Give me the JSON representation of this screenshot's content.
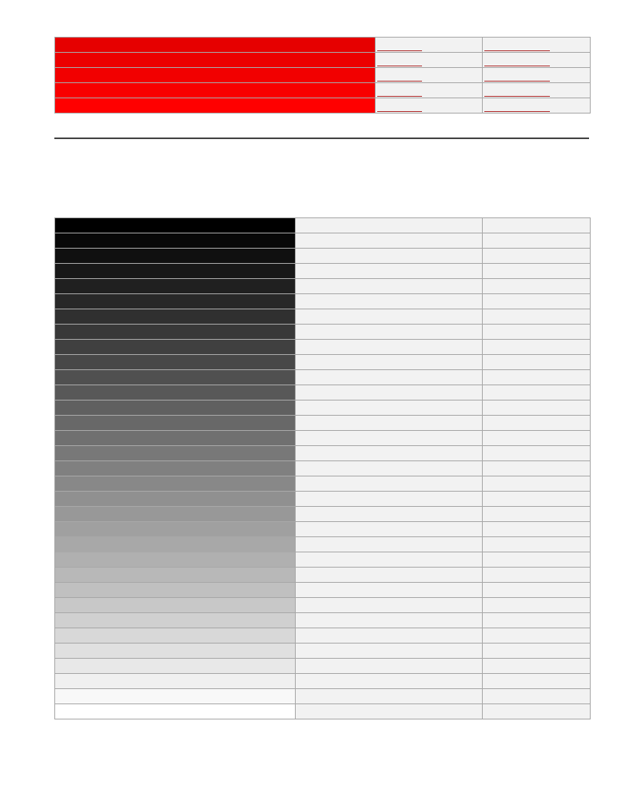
{
  "red_table": {
    "rows": [
      {
        "color": "#e60000",
        "hex_text": "",
        "rgb_text": ""
      },
      {
        "color": "#ec0000",
        "hex_text": "",
        "rgb_text": ""
      },
      {
        "color": "#f20000",
        "hex_text": "",
        "rgb_text": ""
      },
      {
        "color": "#f80000",
        "hex_text": "",
        "rgb_text": ""
      },
      {
        "color": "#ff0000",
        "hex_text": "",
        "rgb_text": ""
      }
    ]
  },
  "gray_table": {
    "rows": [
      {
        "color": "#000000",
        "hex_text": "",
        "rgb_text": ""
      },
      {
        "color": "#080808",
        "hex_text": "",
        "rgb_text": ""
      },
      {
        "color": "#101010",
        "hex_text": "",
        "rgb_text": ""
      },
      {
        "color": "#181818",
        "hex_text": "",
        "rgb_text": ""
      },
      {
        "color": "#202020",
        "hex_text": "",
        "rgb_text": ""
      },
      {
        "color": "#282828",
        "hex_text": "",
        "rgb_text": ""
      },
      {
        "color": "#303030",
        "hex_text": "",
        "rgb_text": ""
      },
      {
        "color": "#383838",
        "hex_text": "",
        "rgb_text": ""
      },
      {
        "color": "#404040",
        "hex_text": "",
        "rgb_text": ""
      },
      {
        "color": "#484848",
        "hex_text": "",
        "rgb_text": ""
      },
      {
        "color": "#505050",
        "hex_text": "",
        "rgb_text": ""
      },
      {
        "color": "#585858",
        "hex_text": "",
        "rgb_text": ""
      },
      {
        "color": "#606060",
        "hex_text": "",
        "rgb_text": ""
      },
      {
        "color": "#686868",
        "hex_text": "",
        "rgb_text": ""
      },
      {
        "color": "#707070",
        "hex_text": "",
        "rgb_text": ""
      },
      {
        "color": "#787878",
        "hex_text": "",
        "rgb_text": ""
      },
      {
        "color": "#808080",
        "hex_text": "",
        "rgb_text": ""
      },
      {
        "color": "#888888",
        "hex_text": "",
        "rgb_text": ""
      },
      {
        "color": "#909090",
        "hex_text": "",
        "rgb_text": ""
      },
      {
        "color": "#989898",
        "hex_text": "",
        "rgb_text": ""
      },
      {
        "color": "#a0a0a0",
        "hex_text": "",
        "rgb_text": ""
      },
      {
        "color": "#a8a8a8",
        "hex_text": "",
        "rgb_text": ""
      },
      {
        "color": "#b0b0b0",
        "hex_text": "",
        "rgb_text": ""
      },
      {
        "color": "#b8b8b8",
        "hex_text": "",
        "rgb_text": ""
      },
      {
        "color": "#c0c0c0",
        "hex_text": "",
        "rgb_text": ""
      },
      {
        "color": "#c8c8c8",
        "hex_text": "",
        "rgb_text": ""
      },
      {
        "color": "#d0d0d0",
        "hex_text": "",
        "rgb_text": ""
      },
      {
        "color": "#d8d8d8",
        "hex_text": "",
        "rgb_text": ""
      },
      {
        "color": "#e0e0e0",
        "hex_text": "",
        "rgb_text": ""
      },
      {
        "color": "#e8e8e8",
        "hex_text": "",
        "rgb_text": ""
      },
      {
        "color": "#f0f0f0",
        "hex_text": "",
        "rgb_text": ""
      },
      {
        "color": "#f8f8f8",
        "hex_text": "",
        "rgb_text": ""
      },
      {
        "color": "#ffffff",
        "hex_text": "",
        "rgb_text": ""
      }
    ]
  },
  "colors": {
    "cell_background": "#f2f2f2",
    "border": "#a8a8a8",
    "link_underline": "#b03030",
    "divider": "#444444"
  }
}
